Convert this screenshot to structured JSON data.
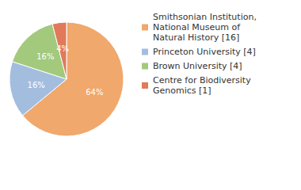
{
  "chart_data": {
    "type": "pie",
    "categories": [
      "Smithsonian Institution, National Museum of Natural History [16]",
      "Princeton University [4]",
      "Brown University [4]",
      "Centre for Biodiversity Genomics [1]"
    ],
    "values": [
      64,
      16,
      16,
      4
    ],
    "value_labels": [
      "64%",
      "16%",
      "16%",
      "4%"
    ],
    "colors": [
      "#f0a86c",
      "#a3bddf",
      "#a3c97c",
      "#e07a5a"
    ],
    "data_labels": true,
    "legend": "right"
  }
}
